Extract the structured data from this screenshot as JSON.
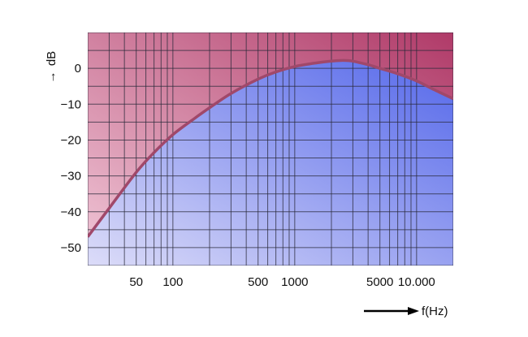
{
  "chart_data": {
    "type": "area",
    "title": "",
    "xlabel": "f(Hz)",
    "ylabel": "dB",
    "x_scale": "log",
    "xlim": [
      20,
      20000
    ],
    "ylim": [
      -55,
      10
    ],
    "grid": true,
    "x_tick_labels": [
      {
        "value": 50,
        "label": "50"
      },
      {
        "value": 100,
        "label": "100"
      },
      {
        "value": 500,
        "label": "500"
      },
      {
        "value": 1000,
        "label": "1000"
      },
      {
        "value": 5000,
        "label": "5000"
      },
      {
        "value": 10000,
        "label": "10.000"
      }
    ],
    "y_tick_labels": [
      {
        "value": 0,
        "label": "0"
      },
      {
        "value": -10,
        "label": "−10"
      },
      {
        "value": -20,
        "label": "−20"
      },
      {
        "value": -30,
        "label": "−30"
      },
      {
        "value": -40,
        "label": "−40"
      },
      {
        "value": -50,
        "label": "−50"
      }
    ],
    "x_grid": [
      20,
      30,
      40,
      50,
      60,
      70,
      80,
      90,
      100,
      200,
      300,
      400,
      500,
      600,
      700,
      800,
      900,
      1000,
      2000,
      3000,
      4000,
      5000,
      6000,
      7000,
      8000,
      9000,
      10000,
      20000
    ],
    "y_grid": [
      10,
      5,
      0,
      -5,
      -10,
      -15,
      -20,
      -25,
      -30,
      -35,
      -40,
      -45,
      -50,
      -55
    ],
    "series": [
      {
        "x": [
          20,
          30,
          50,
          70,
          100,
          150,
          200,
          300,
          500,
          700,
          1000,
          1500,
          2000,
          2500,
          3000,
          4000,
          5000,
          7000,
          10000,
          14000,
          20000
        ],
        "y": [
          -47,
          -39,
          -29,
          -23.5,
          -18.5,
          -14,
          -11,
          -7,
          -3,
          -1,
          0.5,
          1.5,
          2,
          2.2,
          2,
          1,
          0,
          -1.5,
          -3.5,
          -6,
          -8.5
        ]
      }
    ],
    "colors": {
      "upper_region_dark": "#b03a68",
      "upper_region_light": "#f1c8d8",
      "lower_region_light": "#dcdcf8",
      "lower_region_dark": "#5568ea",
      "curve": "#a0486a",
      "grid": "#2a2a3a"
    }
  }
}
